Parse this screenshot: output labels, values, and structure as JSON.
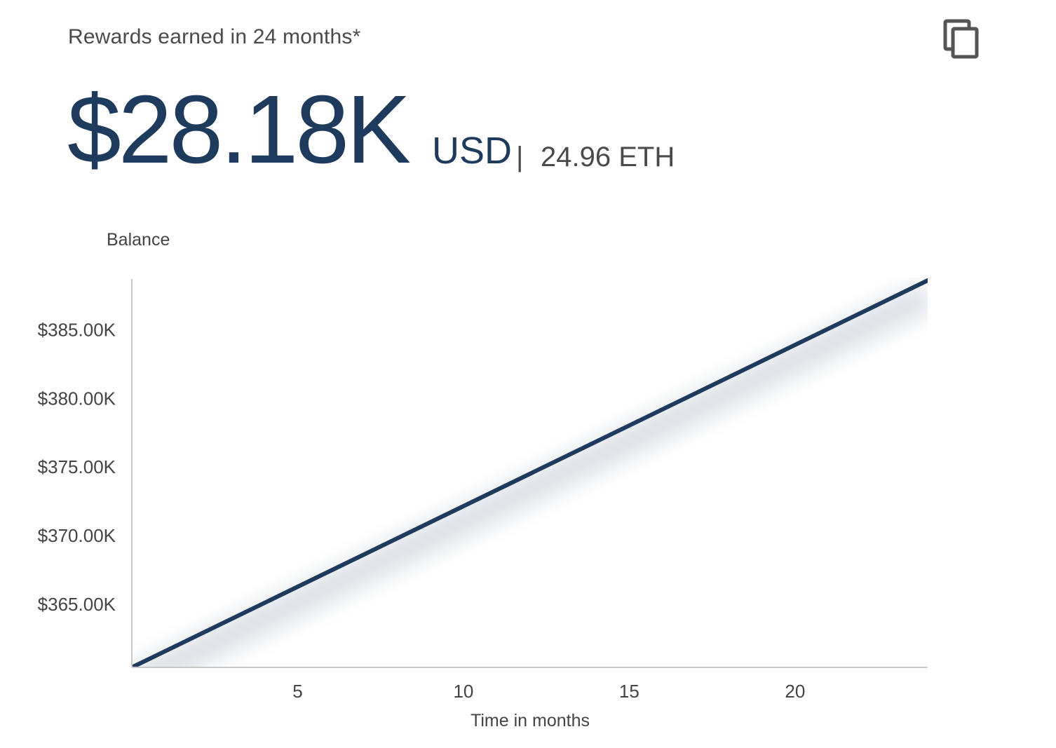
{
  "header": {
    "title": "Rewards earned in 24 months*",
    "amount": "$28.18K",
    "currency": "USD",
    "divider": "|",
    "eth": "24.96 ETH",
    "copy_icon": "copy-icon"
  },
  "colors": {
    "primary": "#1e3a5c",
    "text": "#4a4a4a",
    "axis": "#c8c8c8",
    "area": "#dfe3e8"
  },
  "chart_data": {
    "type": "line",
    "title": "",
    "ylabel": "Balance",
    "xlabel": "Time in months",
    "xlim": [
      0,
      24
    ],
    "ylim": [
      360400,
      388600
    ],
    "x_ticks": [
      5,
      10,
      15,
      20
    ],
    "y_ticks": [
      365000,
      370000,
      375000,
      380000,
      385000
    ],
    "y_tick_labels": [
      "$365.00K",
      "$370.00K",
      "$375.00K",
      "$380.00K",
      "$385.00K"
    ],
    "grid": false,
    "series": [
      {
        "x": [
          0,
          24
        ],
        "y": [
          360400,
          388600
        ]
      }
    ]
  }
}
